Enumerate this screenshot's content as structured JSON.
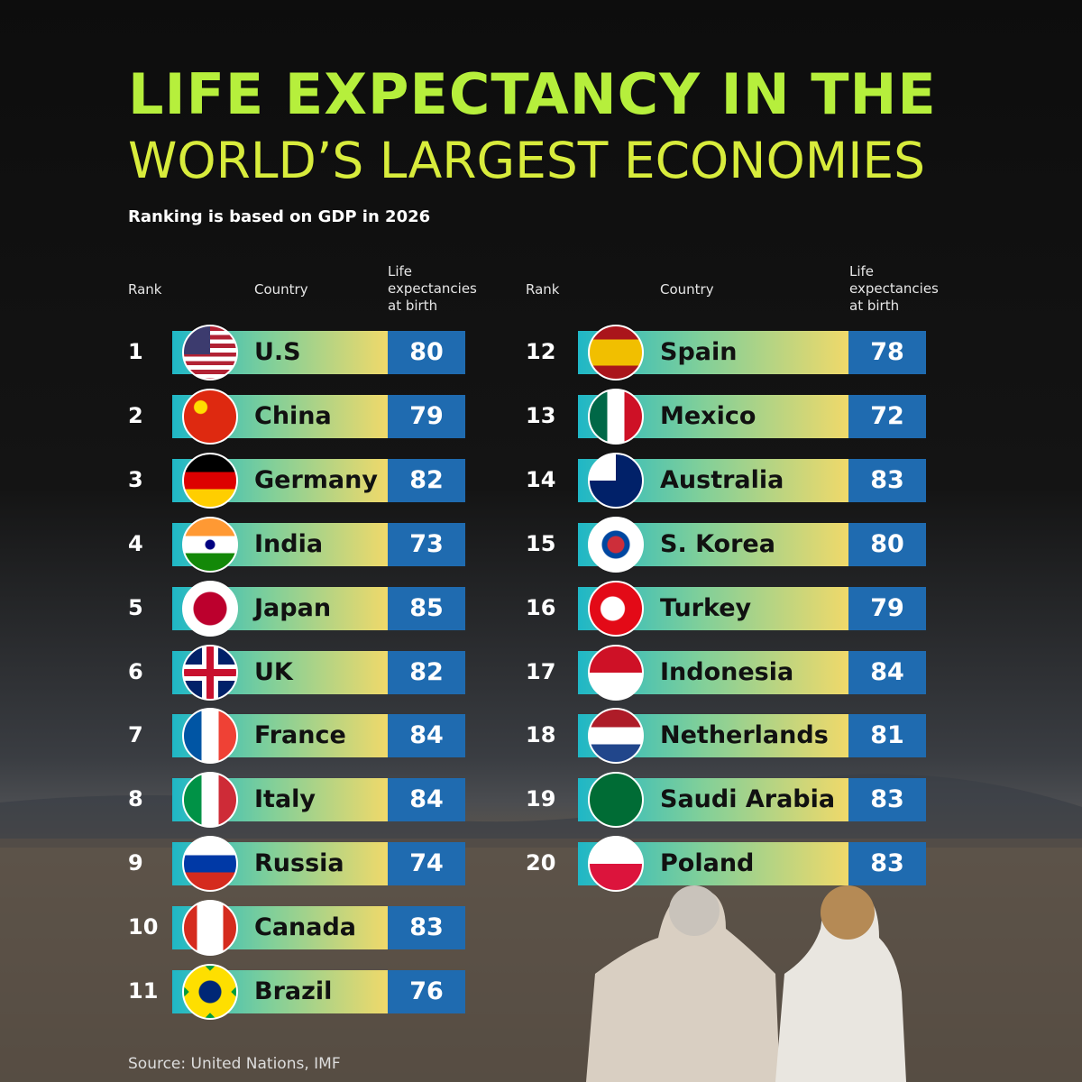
{
  "header": {
    "title_line1": "LIFE EXPECTANCY IN THE",
    "title_line2": "WORLD’S LARGEST ECONOMIES",
    "subtitle": "Ranking is based on GDP in 2026"
  },
  "columns": {
    "rank": "Rank",
    "country": "Country",
    "life_expectancy": "Life expectancies at birth"
  },
  "rows": [
    {
      "rank": 1,
      "country": "U.S",
      "life_expectancy": 80
    },
    {
      "rank": 2,
      "country": "China",
      "life_expectancy": 79
    },
    {
      "rank": 3,
      "country": "Germany",
      "life_expectancy": 82
    },
    {
      "rank": 4,
      "country": "India",
      "life_expectancy": 73
    },
    {
      "rank": 5,
      "country": "Japan",
      "life_expectancy": 85
    },
    {
      "rank": 6,
      "country": "UK",
      "life_expectancy": 82
    },
    {
      "rank": 7,
      "country": "France",
      "life_expectancy": 84
    },
    {
      "rank": 8,
      "country": "Italy",
      "life_expectancy": 84
    },
    {
      "rank": 9,
      "country": "Russia",
      "life_expectancy": 74
    },
    {
      "rank": 10,
      "country": "Canada",
      "life_expectancy": 83
    },
    {
      "rank": 11,
      "country": "Brazil",
      "life_expectancy": 76
    },
    {
      "rank": 12,
      "country": "Spain",
      "life_expectancy": 78
    },
    {
      "rank": 13,
      "country": "Mexico",
      "life_expectancy": 72
    },
    {
      "rank": 14,
      "country": "Australia",
      "life_expectancy": 83
    },
    {
      "rank": 15,
      "country": "S. Korea",
      "life_expectancy": 80
    },
    {
      "rank": 16,
      "country": "Turkey",
      "life_expectancy": 79
    },
    {
      "rank": 17,
      "country": "Indonesia",
      "life_expectancy": 84
    },
    {
      "rank": 18,
      "country": "Netherlands",
      "life_expectancy": 81
    },
    {
      "rank": 19,
      "country": "Saudi Arabia",
      "life_expectancy": 83
    },
    {
      "rank": 20,
      "country": "Poland",
      "life_expectancy": 83
    }
  ],
  "source": "Source: United Nations, IMF"
}
